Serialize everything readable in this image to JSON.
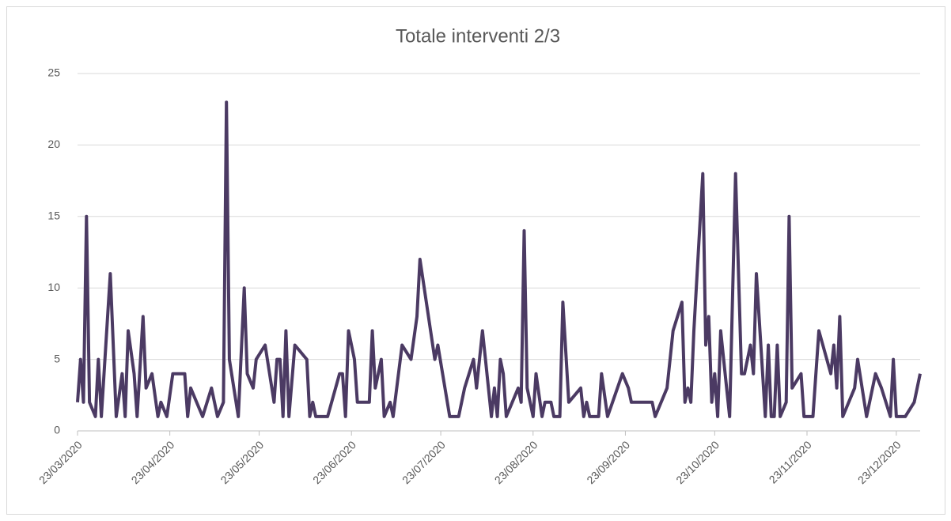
{
  "chart_data": {
    "type": "line",
    "title": "Totale interventi 2/3",
    "x": [
      "2020-03-23",
      "2020-03-24",
      "2020-03-25",
      "2020-03-26",
      "2020-03-27",
      "2020-03-29",
      "2020-03-30",
      "2020-03-31",
      "2020-04-03",
      "2020-04-05",
      "2020-04-07",
      "2020-04-08",
      "2020-04-09",
      "2020-04-11",
      "2020-04-12",
      "2020-04-14",
      "2020-04-15",
      "2020-04-17",
      "2020-04-19",
      "2020-04-20",
      "2020-04-22",
      "2020-04-24",
      "2020-04-28",
      "2020-04-29",
      "2020-04-30",
      "2020-05-04",
      "2020-05-07",
      "2020-05-09",
      "2020-05-11",
      "2020-05-12",
      "2020-05-13",
      "2020-05-16",
      "2020-05-18",
      "2020-05-19",
      "2020-05-21",
      "2020-05-22",
      "2020-05-25",
      "2020-05-28",
      "2020-05-29",
      "2020-05-30",
      "2020-05-31",
      "2020-06-01",
      "2020-06-02",
      "2020-06-04",
      "2020-06-08",
      "2020-06-09",
      "2020-06-10",
      "2020-06-11",
      "2020-06-15",
      "2020-06-19",
      "2020-06-20",
      "2020-06-21",
      "2020-06-22",
      "2020-06-24",
      "2020-06-25",
      "2020-06-29",
      "2020-06-30",
      "2020-07-01",
      "2020-07-03",
      "2020-07-04",
      "2020-07-06",
      "2020-07-07",
      "2020-07-10",
      "2020-07-13",
      "2020-07-15",
      "2020-07-16",
      "2020-07-21",
      "2020-07-22",
      "2020-07-26",
      "2020-07-29",
      "2020-07-31",
      "2020-08-03",
      "2020-08-04",
      "2020-08-06",
      "2020-08-07",
      "2020-08-09",
      "2020-08-10",
      "2020-08-11",
      "2020-08-12",
      "2020-08-13",
      "2020-08-14",
      "2020-08-18",
      "2020-08-19",
      "2020-08-20",
      "2020-08-21",
      "2020-08-23",
      "2020-08-24",
      "2020-08-26",
      "2020-08-27",
      "2020-08-29",
      "2020-08-30",
      "2020-09-01",
      "2020-09-02",
      "2020-09-04",
      "2020-09-08",
      "2020-09-09",
      "2020-09-10",
      "2020-09-11",
      "2020-09-14",
      "2020-09-15",
      "2020-09-17",
      "2020-09-22",
      "2020-09-24",
      "2020-09-25",
      "2020-10-02",
      "2020-10-03",
      "2020-10-07",
      "2020-10-09",
      "2020-10-12",
      "2020-10-13",
      "2020-10-14",
      "2020-10-15",
      "2020-10-16",
      "2020-10-19",
      "2020-10-20",
      "2020-10-21",
      "2020-10-22",
      "2020-10-23",
      "2020-10-24",
      "2020-10-25",
      "2020-10-27",
      "2020-10-28",
      "2020-10-30",
      "2020-11-01",
      "2020-11-02",
      "2020-11-04",
      "2020-11-05",
      "2020-11-06",
      "2020-11-09",
      "2020-11-10",
      "2020-11-11",
      "2020-11-12",
      "2020-11-13",
      "2020-11-14",
      "2020-11-16",
      "2020-11-17",
      "2020-11-18",
      "2020-11-21",
      "2020-11-22",
      "2020-11-25",
      "2020-11-27",
      "2020-12-01",
      "2020-12-02",
      "2020-12-03",
      "2020-12-04",
      "2020-12-05",
      "2020-12-09",
      "2020-12-10",
      "2020-12-13",
      "2020-12-16",
      "2020-12-18",
      "2020-12-21",
      "2020-12-22",
      "2020-12-23",
      "2020-12-26",
      "2020-12-29",
      "2020-12-31"
    ],
    "values": [
      2,
      5,
      2,
      15,
      2,
      1,
      5,
      1,
      11,
      1,
      4,
      1,
      7,
      4,
      1,
      8,
      3,
      4,
      1,
      2,
      1,
      4,
      4,
      1,
      3,
      1,
      3,
      1,
      2,
      23,
      5,
      1,
      10,
      4,
      3,
      5,
      6,
      2,
      5,
      5,
      1,
      7,
      1,
      6,
      5,
      1,
      2,
      1,
      1,
      4,
      4,
      1,
      7,
      5,
      2,
      2,
      7,
      3,
      5,
      1,
      2,
      1,
      6,
      5,
      8,
      12,
      5,
      6,
      1,
      1,
      3,
      5,
      3,
      7,
      5,
      1,
      3,
      1,
      5,
      4,
      1,
      3,
      2,
      14,
      3,
      1,
      4,
      1,
      2,
      2,
      1,
      1,
      9,
      2,
      3,
      1,
      2,
      1,
      1,
      4,
      1,
      4,
      3,
      2,
      2,
      1,
      3,
      7,
      9,
      2,
      3,
      2,
      7,
      18,
      6,
      8,
      2,
      4,
      1,
      7,
      3,
      1,
      18,
      4,
      4,
      6,
      4,
      11,
      1,
      6,
      1,
      1,
      6,
      1,
      2,
      15,
      3,
      4,
      1,
      1,
      7,
      4,
      6,
      3,
      8,
      1,
      3,
      5,
      1,
      4,
      3,
      1,
      5,
      1,
      1,
      2,
      4
    ],
    "color": "#4b3a63",
    "xlim": [
      "2020-03-23",
      "2020-12-31"
    ],
    "xticks": [
      {
        "value": "2020-03-23",
        "label": "23/03/2020"
      },
      {
        "value": "2020-04-23",
        "label": "23/04/2020"
      },
      {
        "value": "2020-05-23",
        "label": "23/05/2020"
      },
      {
        "value": "2020-06-23",
        "label": "23/06/2020"
      },
      {
        "value": "2020-07-23",
        "label": "23/07/2020"
      },
      {
        "value": "2020-08-23",
        "label": "23/08/2020"
      },
      {
        "value": "2020-09-23",
        "label": "23/09/2020"
      },
      {
        "value": "2020-10-23",
        "label": "23/10/2020"
      },
      {
        "value": "2020-11-23",
        "label": "23/11/2020"
      },
      {
        "value": "2020-12-23",
        "label": "23/12/2020"
      }
    ],
    "ylim": [
      0,
      25
    ],
    "yticks": [
      0,
      5,
      10,
      15,
      20,
      25
    ],
    "grid": true
  }
}
